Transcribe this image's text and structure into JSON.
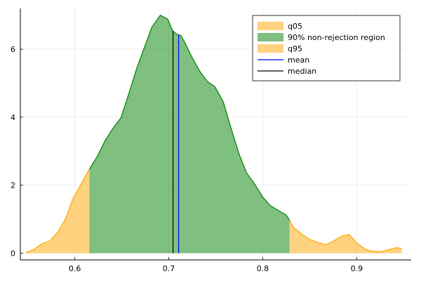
{
  "chart_data": {
    "type": "area",
    "title": "",
    "xlabel": "",
    "ylabel": "",
    "xlim": [
      0.542,
      0.958
    ],
    "ylim": [
      -0.2,
      7.2
    ],
    "x_ticks": [
      0.6,
      0.7,
      0.8,
      0.9
    ],
    "x_tick_labels": [
      "0.6",
      "0.7",
      "0.8",
      "0.9"
    ],
    "y_ticks": [
      0,
      2,
      4,
      6
    ],
    "y_tick_labels": [
      "0",
      "2",
      "4",
      "6"
    ],
    "grid": true,
    "legend_position": "top-right",
    "density_x": [
      0.548,
      0.556,
      0.565,
      0.573,
      0.582,
      0.59,
      0.598,
      0.607,
      0.615,
      0.624,
      0.632,
      0.64,
      0.649,
      0.657,
      0.666,
      0.674,
      0.682,
      0.691,
      0.699,
      0.704,
      0.708,
      0.713,
      0.717,
      0.724,
      0.733,
      0.741,
      0.749,
      0.758,
      0.766,
      0.775,
      0.783,
      0.791,
      0.8,
      0.808,
      0.817,
      0.825,
      0.829,
      0.833,
      0.842,
      0.85,
      0.858,
      0.867,
      0.875,
      0.884,
      0.892,
      0.9,
      0.909,
      0.917,
      0.926,
      0.934,
      0.942,
      0.948
    ],
    "density_y": [
      0.02,
      0.1,
      0.28,
      0.35,
      0.62,
      1.0,
      1.6,
      2.05,
      2.45,
      2.85,
      3.3,
      3.65,
      3.98,
      4.65,
      5.45,
      6.05,
      6.65,
      7.0,
      6.88,
      6.55,
      6.45,
      6.4,
      6.2,
      5.8,
      5.35,
      5.05,
      4.9,
      4.45,
      3.7,
      2.9,
      2.35,
      2.05,
      1.65,
      1.4,
      1.25,
      1.12,
      0.95,
      0.75,
      0.55,
      0.4,
      0.32,
      0.25,
      0.35,
      0.5,
      0.55,
      0.3,
      0.12,
      0.05,
      0.04,
      0.1,
      0.16,
      0.14
    ],
    "q05": 0.6155,
    "q95": 0.8285,
    "mean": 0.7105,
    "median": 0.7045,
    "series": [
      {
        "name": "q05",
        "kind": "area",
        "color": "#ffa500",
        "opacity": 0.5
      },
      {
        "name": "90% non-rejection region",
        "kind": "area",
        "color": "#008000",
        "opacity": 0.5
      },
      {
        "name": "q95",
        "kind": "area",
        "color": "#ffa500",
        "opacity": 0.5
      },
      {
        "name": "mean",
        "kind": "vline",
        "color": "#0000ff"
      },
      {
        "name": "median",
        "kind": "vline",
        "color": "#000000"
      }
    ],
    "curve_colors": {
      "tail": "#ffa500",
      "central": "#008000"
    }
  }
}
